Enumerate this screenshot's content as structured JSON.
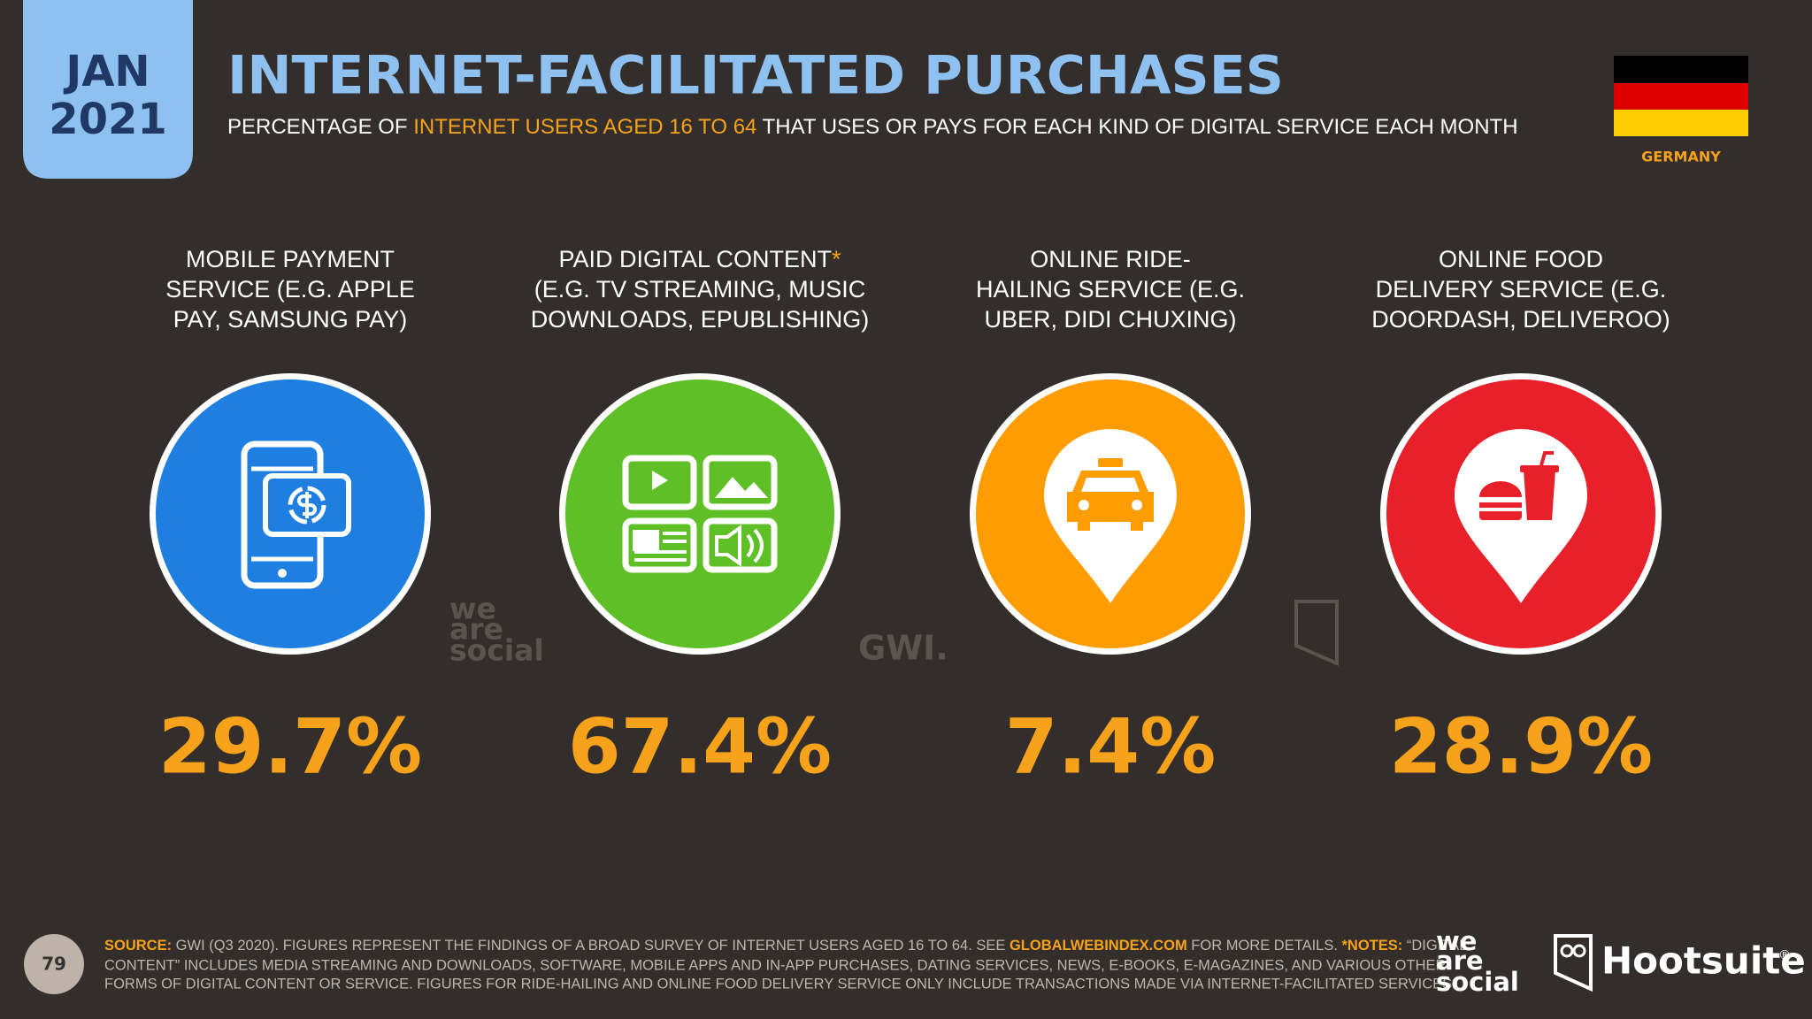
{
  "header": {
    "date_month": "JAN",
    "date_year": "2021",
    "title": "INTERNET-FACILITATED PURCHASES",
    "subtitle": [
      "PERCENTAGE OF ",
      "INTERNET USERS AGED 16 TO 64",
      " THAT USES OR PAYS FOR EACH KIND OF DIGITAL SERVICE EACH MONTH"
    ],
    "country": "GERMANY"
  },
  "stats": [
    {
      "label_lines": [
        "MOBILE PAYMENT",
        "SERVICE (E.G. APPLE",
        "PAY, SAMSUNG PAY)"
      ],
      "value": "29.7%"
    },
    {
      "label_lines": [
        "PAID DIGITAL CONTENT",
        "(E.G. TV STREAMING, MUSIC",
        "DOWNLOADS, EPUBLISHING)"
      ],
      "label_marker": "*",
      "value": "67.4%"
    },
    {
      "label_lines": [
        "ONLINE RIDE-",
        "HAILING SERVICE (E.G.",
        "UBER, DIDI CHUXING)"
      ],
      "value": "7.4%"
    },
    {
      "label_lines": [
        "ONLINE FOOD",
        "DELIVERY SERVICE (E.G.",
        "DOORDASH, DELIVEROO)"
      ],
      "value": "28.9%"
    }
  ],
  "watermarks": {
    "we_are_social": [
      "we",
      "are",
      "social"
    ],
    "gwi": "GWI."
  },
  "footer": {
    "page_number": "79",
    "line1": [
      "SOURCE:",
      " GWI (Q3 2020). FIGURES REPRESENT THE FINDINGS OF A BROAD SURVEY OF INTERNET USERS AGED 16 TO 64. SEE ",
      "GLOBALWEBINDEX.COM",
      " FOR MORE DETAILS. ",
      "*NOTES:",
      " “DIGITAL"
    ],
    "line2": "CONTENT” INCLUDES MEDIA STREAMING AND DOWNLOADS, SOFTWARE, MOBILE APPS AND IN-APP PURCHASES, DATING SERVICES, NEWS, E-BOOKS, E-MAGAZINES, AND VARIOUS OTHER",
    "line3": "FORMS OF DIGITAL CONTENT OR SERVICE. FIGURES FOR RIDE-HAILING AND ONLINE FOOD DELIVERY SERVICE ONLY INCLUDE TRANSACTIONS MADE VIA INTERNET-FACILITATED SERVICES.",
    "logo_was": [
      "we",
      "are",
      "social"
    ],
    "logo_hootsuite": "Hootsuite",
    "logo_registered": "®"
  }
}
